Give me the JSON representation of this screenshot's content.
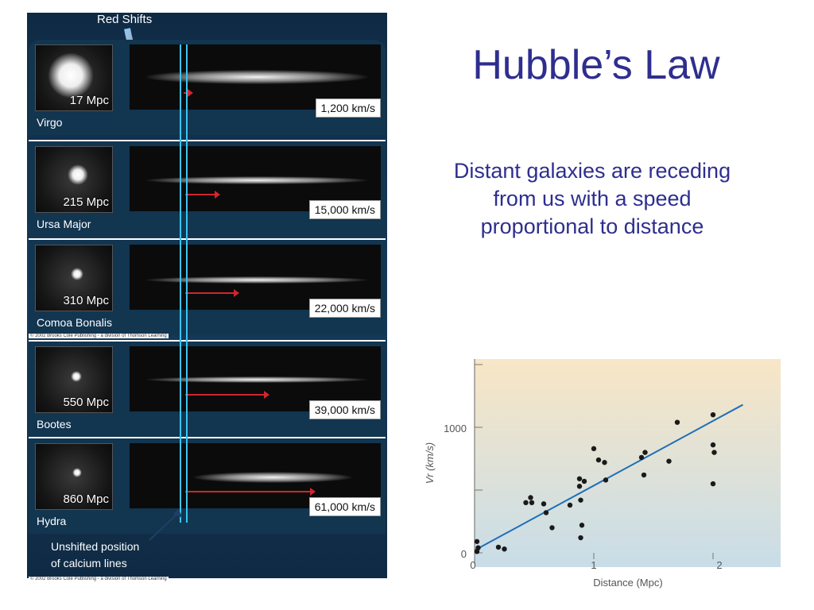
{
  "slide": {
    "title": "Hubble’s Law",
    "subtitle": "Distant galaxies are receding from us with a speed proportional to distance"
  },
  "spectra_panel": {
    "red_shifts_label": "Red Shifts",
    "unshifted_line1": "Unshifted position",
    "unshifted_line2": "of calcium lines",
    "credit": "© 2002 Brooks Cole Publishing - a division of Thomson Learning",
    "galaxies": [
      {
        "name": "Virgo",
        "distance": "17 Mpc",
        "velocity": "1,200 km/s"
      },
      {
        "name": "Ursa Major",
        "distance": "215 Mpc",
        "velocity": "15,000 km/s"
      },
      {
        "name": "Comoa Bonalis",
        "distance": "310 Mpc",
        "velocity": "22,000 km/s"
      },
      {
        "name": "Bootes",
        "distance": "550 Mpc",
        "velocity": "39,000 km/s"
      },
      {
        "name": "Hydra",
        "distance": "860 Mpc",
        "velocity": "61,000 km/s"
      }
    ],
    "colors": {
      "calcium_lines": "#39c4f0",
      "redshift_arrow": "#d0262c"
    }
  },
  "chart_data": {
    "type": "scatter",
    "xlabel": "Distance (Mpc)",
    "ylabel": "Vr (km/s)",
    "xlim": [
      0,
      2.5
    ],
    "ylim": [
      -100,
      1550
    ],
    "xticks": [
      "0",
      "1",
      "2"
    ],
    "yticks": [
      "0",
      "1000"
    ],
    "points": [
      [
        0.02,
        90
      ],
      [
        0.03,
        40
      ],
      [
        0.02,
        10
      ],
      [
        0.2,
        45
      ],
      [
        0.25,
        30
      ],
      [
        0.43,
        400
      ],
      [
        0.47,
        440
      ],
      [
        0.48,
        400
      ],
      [
        0.58,
        390
      ],
      [
        0.6,
        320
      ],
      [
        0.65,
        200
      ],
      [
        0.8,
        380
      ],
      [
        0.88,
        590
      ],
      [
        0.88,
        530
      ],
      [
        0.89,
        420
      ],
      [
        0.9,
        220
      ],
      [
        0.89,
        120
      ],
      [
        0.92,
        570
      ],
      [
        1.0,
        830
      ],
      [
        1.04,
        740
      ],
      [
        1.09,
        720
      ],
      [
        1.1,
        580
      ],
      [
        1.4,
        760
      ],
      [
        1.43,
        800
      ],
      [
        1.42,
        620
      ],
      [
        1.63,
        730
      ],
      [
        1.7,
        1040
      ],
      [
        2.0,
        1100
      ],
      [
        2.0,
        860
      ],
      [
        2.01,
        800
      ],
      [
        2.0,
        550
      ]
    ],
    "fit_line": [
      [
        0,
        20
      ],
      [
        2.25,
        1180
      ]
    ],
    "colors": {
      "points": "#1a1a1a",
      "fit_line": "#1f6fb5",
      "bg_top": "#f8e6c6",
      "bg_bottom": "#c8dde8"
    }
  }
}
